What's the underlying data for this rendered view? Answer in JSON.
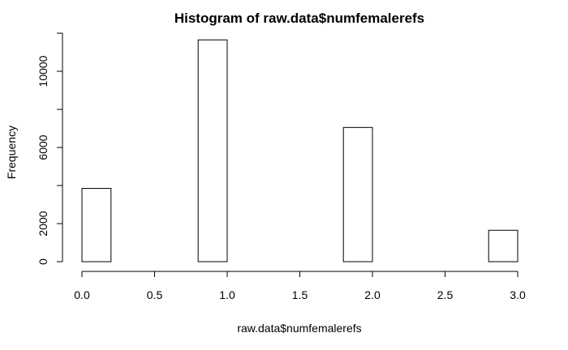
{
  "chart_data": {
    "type": "bar",
    "title": "Histogram of raw.data$numfemalerefs",
    "xlabel": "raw.data$numfemalerefs",
    "ylabel": "Frequency",
    "bins": [
      {
        "x0": 0.0,
        "x1": 0.2,
        "count": 3850
      },
      {
        "x0": 0.2,
        "x1": 0.4,
        "count": 0
      },
      {
        "x0": 0.4,
        "x1": 0.6,
        "count": 0
      },
      {
        "x0": 0.6,
        "x1": 0.8,
        "count": 0
      },
      {
        "x0": 0.8,
        "x1": 1.0,
        "count": 11650
      },
      {
        "x0": 1.0,
        "x1": 1.2,
        "count": 0
      },
      {
        "x0": 1.2,
        "x1": 1.4,
        "count": 0
      },
      {
        "x0": 1.4,
        "x1": 1.6,
        "count": 0
      },
      {
        "x0": 1.6,
        "x1": 1.8,
        "count": 0
      },
      {
        "x0": 1.8,
        "x1": 2.0,
        "count": 7050
      },
      {
        "x0": 2.0,
        "x1": 2.2,
        "count": 0
      },
      {
        "x0": 2.2,
        "x1": 2.4,
        "count": 0
      },
      {
        "x0": 2.4,
        "x1": 2.6,
        "count": 0
      },
      {
        "x0": 2.6,
        "x1": 2.8,
        "count": 0
      },
      {
        "x0": 2.8,
        "x1": 3.0,
        "count": 1650
      }
    ],
    "xlim": [
      0,
      3
    ],
    "ylim": [
      0,
      12000
    ],
    "x_ticks": [
      {
        "value": 0.0,
        "label": "0.0"
      },
      {
        "value": 0.5,
        "label": "0.5"
      },
      {
        "value": 1.0,
        "label": "1.0"
      },
      {
        "value": 1.5,
        "label": "1.5"
      },
      {
        "value": 2.0,
        "label": "2.0"
      },
      {
        "value": 2.5,
        "label": "2.5"
      },
      {
        "value": 3.0,
        "label": "3.0"
      }
    ],
    "y_ticks": [
      {
        "value": 0,
        "label": "0"
      },
      {
        "value": 2000,
        "label": "2000"
      },
      {
        "value": 6000,
        "label": "6000"
      },
      {
        "value": 10000,
        "label": "10000"
      }
    ],
    "y_minor_ticks": [
      4000,
      8000,
      12000
    ],
    "bar_fill": "#ffffff",
    "bar_stroke": "#000000",
    "grid": false,
    "legend": "none"
  }
}
